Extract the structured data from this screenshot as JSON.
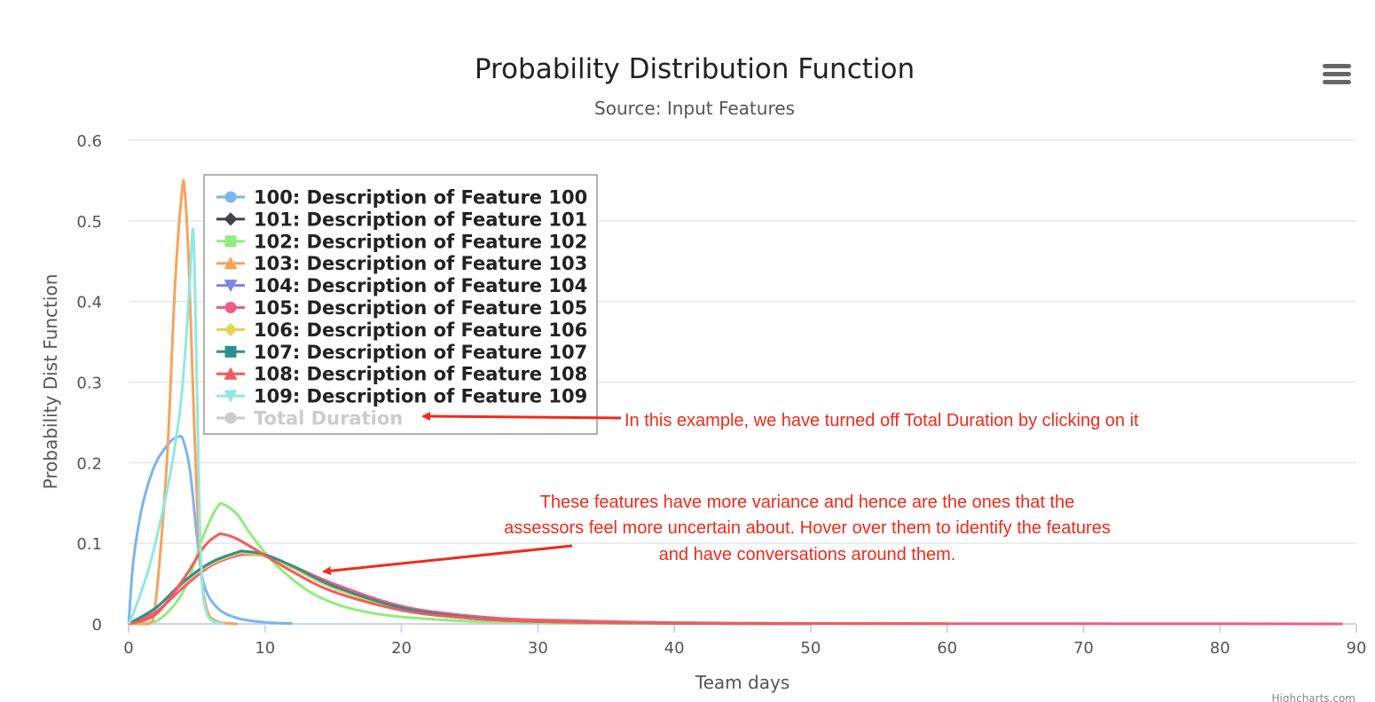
{
  "chart_data": {
    "type": "line",
    "title": "Probability Distribution Function",
    "subtitle": "Source: Input Features",
    "xlabel": "Team days",
    "ylabel": "Probability Dist Function",
    "xlim": [
      0,
      90
    ],
    "ylim": [
      0,
      0.6
    ],
    "x_ticks": [
      "0",
      "10",
      "20",
      "30",
      "40",
      "50",
      "60",
      "70",
      "80",
      "90"
    ],
    "y_ticks": [
      "0",
      "0.1",
      "0.2",
      "0.3",
      "0.4",
      "0.5",
      "0.6"
    ],
    "grid": true,
    "legend_placement": "top-left",
    "series": [
      {
        "name": "100: Description of Feature 100",
        "color": "#7cb5ec",
        "marker": "circle",
        "visible": true,
        "points": [
          [
            0,
            0
          ],
          [
            0.3,
            0.07
          ],
          [
            0.7,
            0.12
          ],
          [
            1.2,
            0.16
          ],
          [
            2,
            0.2
          ],
          [
            3,
            0.225
          ],
          [
            3.6,
            0.232
          ],
          [
            4,
            0.228
          ],
          [
            4.5,
            0.19
          ],
          [
            5,
            0.11
          ],
          [
            5.5,
            0.05
          ],
          [
            6.5,
            0.02
          ],
          [
            8,
            0.007
          ],
          [
            10,
            0.002
          ],
          [
            12,
            0.0005
          ]
        ]
      },
      {
        "name": "101: Description of Feature 101",
        "color": "#434348",
        "marker": "diamond",
        "visible": true,
        "points": [
          [
            0,
            0
          ],
          [
            2,
            0.02
          ],
          [
            4,
            0.05
          ],
          [
            6,
            0.074
          ],
          [
            8,
            0.087
          ],
          [
            8.5,
            0.088
          ],
          [
            10,
            0.084
          ],
          [
            12,
            0.07
          ],
          [
            15,
            0.045
          ],
          [
            20,
            0.018
          ],
          [
            25,
            0.007
          ],
          [
            30,
            0.003
          ],
          [
            40,
            0.0008
          ],
          [
            50,
            0.0002
          ]
        ]
      },
      {
        "name": "102: Description of Feature 102",
        "color": "#90ed7d",
        "marker": "square",
        "visible": true,
        "points": [
          [
            0,
            0
          ],
          [
            2,
            0.003
          ],
          [
            4,
            0.04
          ],
          [
            5.5,
            0.11
          ],
          [
            6.5,
            0.145
          ],
          [
            7,
            0.148
          ],
          [
            8,
            0.135
          ],
          [
            9,
            0.11
          ],
          [
            11,
            0.07
          ],
          [
            14,
            0.033
          ],
          [
            18,
            0.013
          ],
          [
            24,
            0.004
          ],
          [
            30,
            0.0012
          ],
          [
            40,
            0.0002
          ]
        ]
      },
      {
        "name": "103: Description of Feature 103",
        "color": "#f7a35c",
        "marker": "triangle",
        "visible": true,
        "points": [
          [
            0,
            0
          ],
          [
            1.5,
            0
          ],
          [
            2,
            0.03
          ],
          [
            2.8,
            0.2
          ],
          [
            3.4,
            0.42
          ],
          [
            3.9,
            0.535
          ],
          [
            4.1,
            0.54
          ],
          [
            4.4,
            0.45
          ],
          [
            4.8,
            0.25
          ],
          [
            5.2,
            0.09
          ],
          [
            5.7,
            0.02
          ],
          [
            6.5,
            0.003
          ],
          [
            8,
            0
          ]
        ]
      },
      {
        "name": "104: Description of Feature 104",
        "color": "#8085e9",
        "marker": "triangle-down",
        "visible": true,
        "points": [
          [
            0,
            0
          ],
          [
            2,
            0.02
          ],
          [
            4,
            0.05
          ],
          [
            6,
            0.074
          ],
          [
            8,
            0.087
          ],
          [
            8.5,
            0.088
          ],
          [
            10,
            0.084
          ],
          [
            12,
            0.07
          ],
          [
            15,
            0.045
          ],
          [
            20,
            0.018
          ],
          [
            25,
            0.007
          ],
          [
            30,
            0.003
          ],
          [
            40,
            0.0008
          ]
        ]
      },
      {
        "name": "105: Description of Feature 105",
        "color": "#f15c80",
        "marker": "circle",
        "visible": true,
        "points": [
          [
            0,
            0
          ],
          [
            2,
            0.015
          ],
          [
            4,
            0.045
          ],
          [
            6,
            0.072
          ],
          [
            8,
            0.085
          ],
          [
            9,
            0.086
          ],
          [
            10,
            0.084
          ],
          [
            12,
            0.072
          ],
          [
            15,
            0.05
          ],
          [
            20,
            0.022
          ],
          [
            25,
            0.01
          ],
          [
            30,
            0.005
          ],
          [
            40,
            0.0015
          ],
          [
            50,
            0.0006
          ],
          [
            60,
            0.0003
          ],
          [
            70,
            0.0002
          ],
          [
            89,
            5e-05
          ]
        ]
      },
      {
        "name": "106: Description of Feature 106",
        "color": "#e4d354",
        "marker": "diamond",
        "visible": true,
        "points": [
          [
            0,
            0
          ],
          [
            2,
            0.02
          ],
          [
            4,
            0.05
          ],
          [
            6,
            0.074
          ],
          [
            8,
            0.087
          ],
          [
            8.5,
            0.088
          ],
          [
            10,
            0.084
          ],
          [
            12,
            0.07
          ],
          [
            15,
            0.045
          ],
          [
            20,
            0.018
          ],
          [
            25,
            0.007
          ],
          [
            30,
            0.003
          ],
          [
            40,
            0.0008
          ]
        ]
      },
      {
        "name": "107: Description of Feature 107",
        "color": "#2b908f",
        "marker": "square",
        "visible": true,
        "points": [
          [
            0,
            0
          ],
          [
            2,
            0.02
          ],
          [
            4,
            0.052
          ],
          [
            6,
            0.076
          ],
          [
            8,
            0.089
          ],
          [
            8.5,
            0.09
          ],
          [
            10,
            0.086
          ],
          [
            12,
            0.072
          ],
          [
            15,
            0.047
          ],
          [
            20,
            0.02
          ],
          [
            25,
            0.008
          ],
          [
            30,
            0.003
          ],
          [
            40,
            0.0008
          ],
          [
            50,
            0.0002
          ]
        ]
      },
      {
        "name": "108: Description of Feature 108",
        "color": "#f45b5b",
        "marker": "triangle",
        "visible": true,
        "points": [
          [
            0,
            0
          ],
          [
            2,
            0.012
          ],
          [
            4,
            0.055
          ],
          [
            5.5,
            0.095
          ],
          [
            6.5,
            0.11
          ],
          [
            7,
            0.111
          ],
          [
            8,
            0.105
          ],
          [
            10,
            0.085
          ],
          [
            12,
            0.065
          ],
          [
            15,
            0.04
          ],
          [
            20,
            0.017
          ],
          [
            25,
            0.007
          ],
          [
            30,
            0.003
          ],
          [
            40,
            0.0008
          ],
          [
            60,
            0.0002
          ]
        ]
      },
      {
        "name": "109: Description of Feature 109",
        "color": "#91e8e1",
        "marker": "triangle-down",
        "visible": true,
        "points": [
          [
            0,
            0
          ],
          [
            0.5,
            0.02
          ],
          [
            1.5,
            0.07
          ],
          [
            2.5,
            0.14
          ],
          [
            3.2,
            0.2
          ],
          [
            3.8,
            0.27
          ],
          [
            4.2,
            0.35
          ],
          [
            4.5,
            0.43
          ],
          [
            4.75,
            0.485
          ],
          [
            5,
            0.3
          ],
          [
            5.3,
            0.08
          ],
          [
            5.8,
            0.01
          ],
          [
            7,
            0
          ]
        ]
      },
      {
        "name": "Total Duration",
        "color": "#cccccc",
        "marker": "circle",
        "visible": false,
        "points": []
      }
    ],
    "annotations": [
      {
        "text": "In this example, we have turned off Total Duration by clicking on it"
      },
      {
        "lines": [
          "These features have more variance and hence are the ones that the",
          "assessors feel more uncertain about. Hover over them to identify the features",
          "and have conversations around them."
        ]
      }
    ]
  },
  "menu_icon": "hamburger-menu-icon",
  "credits": "Highcharts.com"
}
